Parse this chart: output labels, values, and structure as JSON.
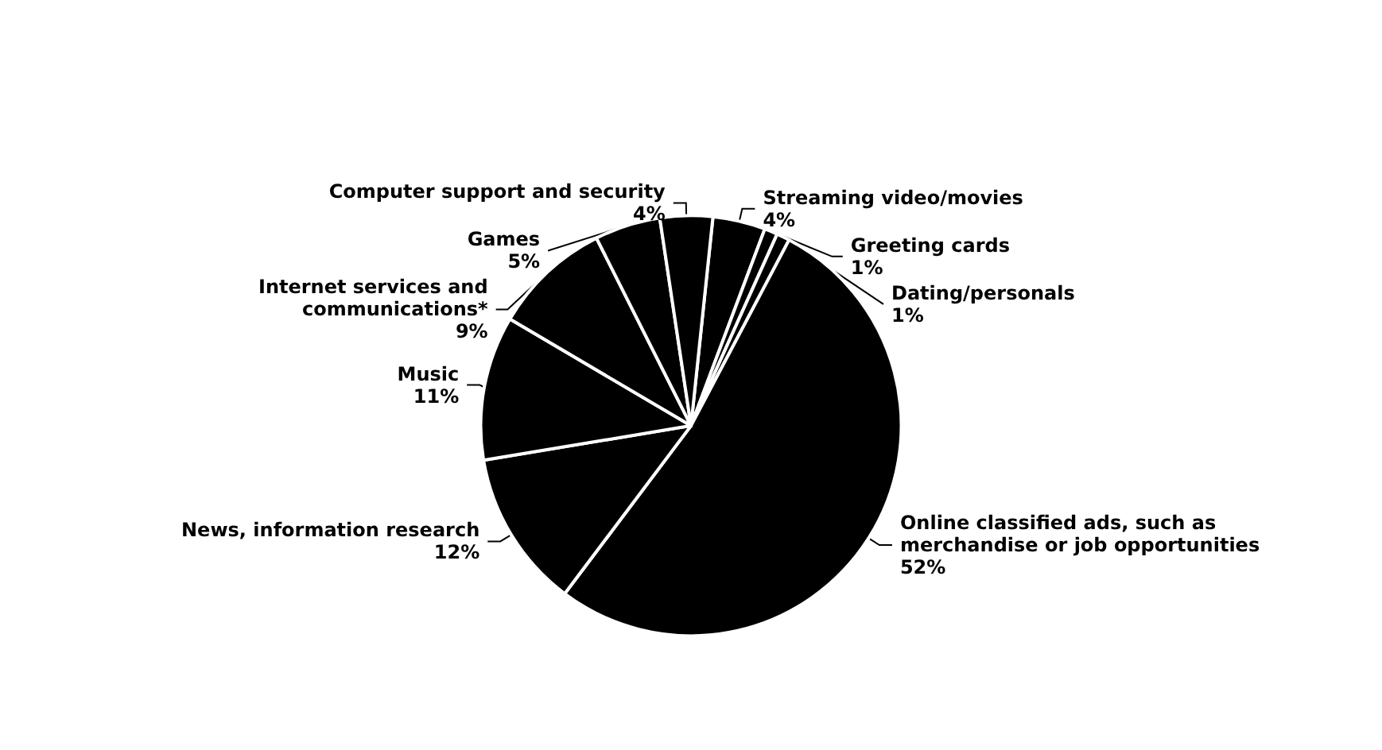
{
  "chart_data": {
    "type": "pie",
    "categories": [
      "Streaming video/movies",
      "Greeting cards",
      "Dating/personals",
      "Online classified ads, such as merchandise or job opportunities",
      "News, information research",
      "Music",
      "Internet services and communications*",
      "Games",
      "Computer support and security"
    ],
    "values": [
      4,
      1,
      1,
      52,
      12,
      11,
      9,
      5,
      4
    ],
    "value_labels": [
      "4%",
      "1%",
      "1%",
      "52%",
      "12%",
      "11%",
      "9%",
      "5%",
      "4%"
    ],
    "colors": [
      "#000000",
      "#000000",
      "#000000",
      "#000000",
      "#000000",
      "#000000",
      "#000000",
      "#000000",
      "#000000"
    ]
  }
}
